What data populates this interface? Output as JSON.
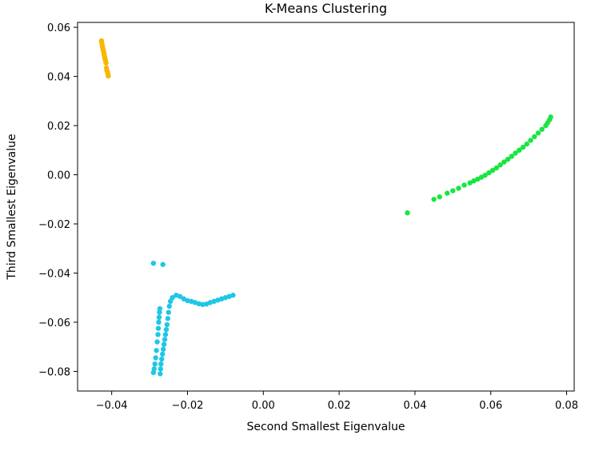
{
  "chart_data": {
    "type": "scatter",
    "title": "K-Means Clustering",
    "xlabel": "Second Smallest Eigenvalue",
    "ylabel": "Third Smallest Eigenvalue",
    "xlim": [
      -0.049,
      0.082
    ],
    "ylim": [
      -0.088,
      0.062
    ],
    "x_ticks": [
      -0.04,
      -0.02,
      0.0,
      0.02,
      0.04,
      0.06,
      0.08
    ],
    "y_ticks": [
      -0.08,
      -0.06,
      -0.04,
      -0.02,
      0.0,
      0.02,
      0.04,
      0.06
    ],
    "x_tick_labels": [
      "−0.04",
      "−0.02",
      "0.00",
      "0.02",
      "0.04",
      "0.06",
      "0.08"
    ],
    "y_tick_labels": [
      "−0.08",
      "−0.06",
      "−0.04",
      "−0.02",
      "0.00",
      "0.02",
      "0.04",
      "0.06"
    ],
    "grid": false,
    "colors": {
      "cluster_orange": "#f6b800",
      "cluster_green": "#17e641",
      "cluster_blue": "#1ec7e6"
    },
    "series": [
      {
        "color": "#f6b800",
        "x": [
          -0.0427,
          -0.0426,
          -0.0425,
          -0.0424,
          -0.0423,
          -0.0422,
          -0.0421,
          -0.042,
          -0.0419,
          -0.0418,
          -0.0417,
          -0.0416,
          -0.0415,
          -0.0414,
          -0.0413,
          -0.0411,
          -0.041,
          -0.0409
        ],
        "y": [
          0.0545,
          0.0535,
          0.0528,
          0.052,
          0.0512,
          0.0505,
          0.0498,
          0.049,
          0.0482,
          0.0475,
          0.0468,
          0.0462,
          0.0455,
          0.0435,
          0.0425,
          0.0418,
          0.041,
          0.0402
        ]
      },
      {
        "color": "#17e641",
        "x": [
          0.038,
          0.045,
          0.0465,
          0.0485,
          0.05,
          0.0515,
          0.053,
          0.0545,
          0.0555,
          0.0565,
          0.0575,
          0.0585,
          0.0595,
          0.0605,
          0.0615,
          0.0625,
          0.0635,
          0.0645,
          0.0655,
          0.0665,
          0.0675,
          0.0685,
          0.0695,
          0.0705,
          0.0715,
          0.0725,
          0.0735,
          0.0745,
          0.075,
          0.0755,
          0.0758
        ],
        "y": [
          -0.0155,
          -0.01,
          -0.009,
          -0.0075,
          -0.0065,
          -0.0055,
          -0.0042,
          -0.0033,
          -0.0025,
          -0.0018,
          -0.001,
          -0.0002,
          0.0008,
          0.0018,
          0.0028,
          0.004,
          0.0052,
          0.0063,
          0.0075,
          0.0088,
          0.01,
          0.0112,
          0.0125,
          0.014,
          0.0155,
          0.017,
          0.0185,
          0.02,
          0.0212,
          0.0224,
          0.0235
        ]
      },
      {
        "color": "#1ec7e6",
        "x": [
          -0.029,
          -0.0265,
          -0.029,
          -0.0288,
          -0.0286,
          -0.0284,
          -0.0282,
          -0.028,
          -0.0278,
          -0.0277,
          -0.0276,
          -0.0275,
          -0.0274,
          -0.0273,
          -0.0272,
          -0.0271,
          -0.027,
          -0.0268,
          -0.0266,
          -0.0264,
          -0.0262,
          -0.026,
          -0.0258,
          -0.0256,
          -0.0254,
          -0.0252,
          -0.025,
          -0.0248,
          -0.0245,
          -0.024,
          -0.023,
          -0.022,
          -0.021,
          -0.02,
          -0.019,
          -0.018,
          -0.017,
          -0.016,
          -0.015,
          -0.014,
          -0.013,
          -0.012,
          -0.011,
          -0.01,
          -0.009,
          -0.008
        ],
        "y": [
          -0.036,
          -0.0365,
          -0.0805,
          -0.079,
          -0.077,
          -0.0745,
          -0.0715,
          -0.068,
          -0.065,
          -0.0625,
          -0.06,
          -0.058,
          -0.056,
          -0.0545,
          -0.081,
          -0.079,
          -0.077,
          -0.075,
          -0.073,
          -0.071,
          -0.069,
          -0.067,
          -0.065,
          -0.063,
          -0.061,
          -0.0585,
          -0.056,
          -0.0535,
          -0.0515,
          -0.05,
          -0.049,
          -0.0495,
          -0.0505,
          -0.0512,
          -0.0515,
          -0.052,
          -0.0525,
          -0.0528,
          -0.0526,
          -0.052,
          -0.0515,
          -0.051,
          -0.0505,
          -0.05,
          -0.0495,
          -0.049
        ]
      }
    ]
  }
}
